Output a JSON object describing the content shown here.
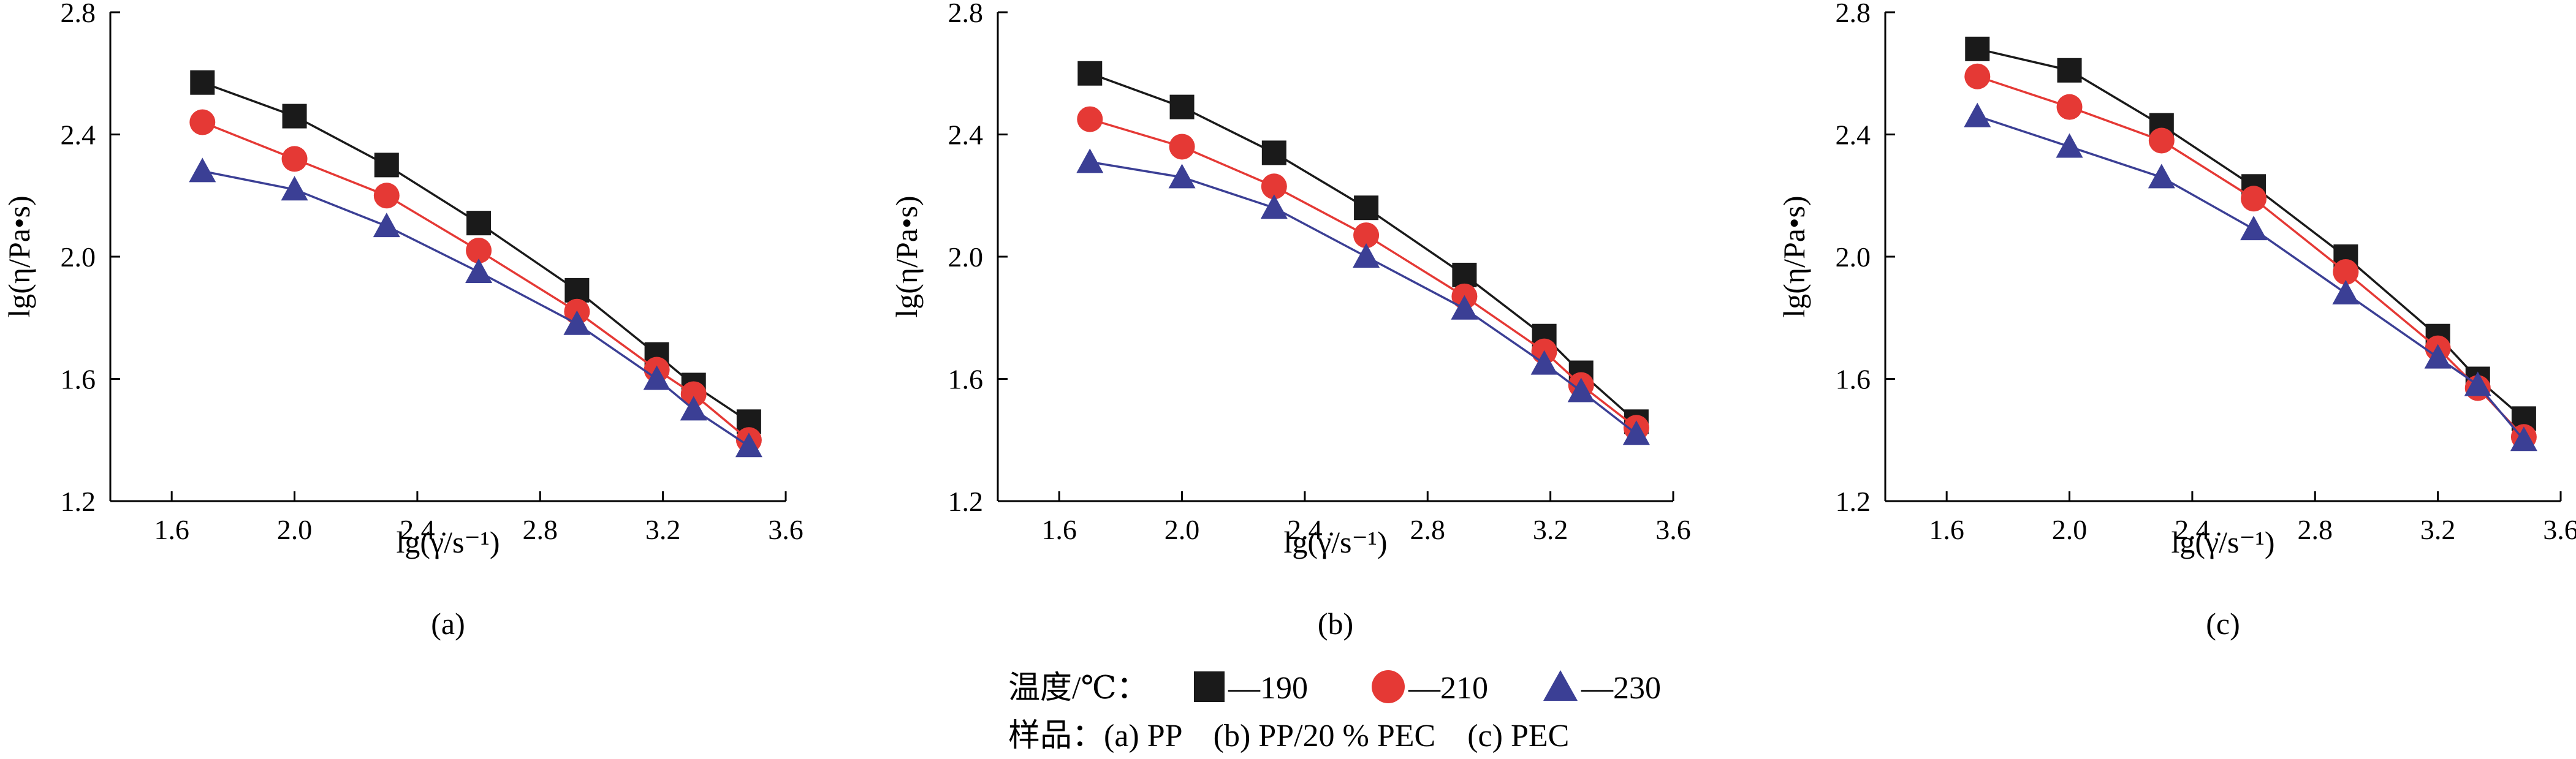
{
  "chart_data": [
    {
      "type": "line",
      "panel_label": "(a)",
      "xlabel": "lg(γ̇/s⁻¹)",
      "ylabel": "lg(η/Pa•s)",
      "xlim": [
        1.4,
        3.6
      ],
      "ylim": [
        1.2,
        2.8
      ],
      "xticks": [
        "1.6",
        "2.0",
        "2.4",
        "2.8",
        "3.2",
        "3.6"
      ],
      "yticks": [
        "1.2",
        "1.6",
        "2.0",
        "2.4",
        "2.8"
      ],
      "series": [
        {
          "name": "190",
          "marker": "square",
          "color": "#1a1a1a",
          "x": [
            1.7,
            2.0,
            2.3,
            2.6,
            2.92,
            3.18,
            3.3,
            3.48
          ],
          "y": [
            2.57,
            2.46,
            2.3,
            2.11,
            1.89,
            1.68,
            1.58,
            1.46
          ]
        },
        {
          "name": "210",
          "marker": "circle",
          "color": "#e53935",
          "x": [
            1.7,
            2.0,
            2.3,
            2.6,
            2.92,
            3.18,
            3.3,
            3.48
          ],
          "y": [
            2.44,
            2.32,
            2.2,
            2.02,
            1.82,
            1.63,
            1.55,
            1.4
          ]
        },
        {
          "name": "230",
          "marker": "triangle",
          "color": "#3b3f95",
          "x": [
            1.7,
            2.0,
            2.3,
            2.6,
            2.92,
            3.18,
            3.3,
            3.48
          ],
          "y": [
            2.28,
            2.22,
            2.1,
            1.95,
            1.78,
            1.6,
            1.5,
            1.38
          ]
        }
      ]
    },
    {
      "type": "line",
      "panel_label": "(b)",
      "xlabel": "lg(γ̇/s⁻¹)",
      "ylabel": "lg(η/Pa•s)",
      "xlim": [
        1.4,
        3.6
      ],
      "ylim": [
        1.2,
        2.8
      ],
      "xticks": [
        "1.6",
        "2.0",
        "2.4",
        "2.8",
        "3.2",
        "3.6"
      ],
      "yticks": [
        "1.2",
        "1.6",
        "2.0",
        "2.4",
        "2.8"
      ],
      "series": [
        {
          "name": "190",
          "marker": "square",
          "color": "#1a1a1a",
          "x": [
            1.7,
            2.0,
            2.3,
            2.6,
            2.92,
            3.18,
            3.3,
            3.48
          ],
          "y": [
            2.6,
            2.49,
            2.34,
            2.16,
            1.94,
            1.74,
            1.62,
            1.46
          ]
        },
        {
          "name": "210",
          "marker": "circle",
          "color": "#e53935",
          "x": [
            1.7,
            2.0,
            2.3,
            2.6,
            2.92,
            3.18,
            3.3,
            3.48
          ],
          "y": [
            2.45,
            2.36,
            2.23,
            2.07,
            1.87,
            1.69,
            1.58,
            1.44
          ]
        },
        {
          "name": "230",
          "marker": "triangle",
          "color": "#3b3f95",
          "x": [
            1.7,
            2.0,
            2.3,
            2.6,
            2.92,
            3.18,
            3.3,
            3.48
          ],
          "y": [
            2.31,
            2.26,
            2.16,
            2.0,
            1.83,
            1.65,
            1.56,
            1.42
          ]
        }
      ]
    },
    {
      "type": "line",
      "panel_label": "(c)",
      "xlabel": "lg(γ̇/s⁻¹)",
      "ylabel": "lg(η/Pa•s)",
      "xlim": [
        1.4,
        3.6
      ],
      "ylim": [
        1.2,
        2.8
      ],
      "xticks": [
        "1.6",
        "2.0",
        "2.4",
        "2.8",
        "3.2",
        "3.6"
      ],
      "yticks": [
        "1.2",
        "1.6",
        "2.0",
        "2.4",
        "2.8"
      ],
      "series": [
        {
          "name": "190",
          "marker": "square",
          "color": "#1a1a1a",
          "x": [
            1.7,
            2.0,
            2.3,
            2.6,
            2.9,
            3.2,
            3.33,
            3.48
          ],
          "y": [
            2.68,
            2.61,
            2.43,
            2.23,
            2.0,
            1.74,
            1.6,
            1.47
          ]
        },
        {
          "name": "210",
          "marker": "circle",
          "color": "#e53935",
          "x": [
            1.7,
            2.0,
            2.3,
            2.6,
            2.9,
            3.2,
            3.33,
            3.48
          ],
          "y": [
            2.59,
            2.49,
            2.38,
            2.19,
            1.95,
            1.7,
            1.57,
            1.41
          ]
        },
        {
          "name": "230",
          "marker": "triangle",
          "color": "#3b3f95",
          "x": [
            1.7,
            2.0,
            2.3,
            2.6,
            2.9,
            3.2,
            3.33,
            3.48
          ],
          "y": [
            2.46,
            2.36,
            2.26,
            2.09,
            1.88,
            1.67,
            1.58,
            1.4
          ]
        }
      ]
    }
  ],
  "legend": {
    "temperature_label": "温度/℃：",
    "entries": [
      {
        "marker": "square",
        "color": "#1a1a1a",
        "text": "—190"
      },
      {
        "marker": "circle",
        "color": "#e53935",
        "text": "—210"
      },
      {
        "marker": "triangle",
        "color": "#3b3f95",
        "text": "—230"
      }
    ],
    "sample_line": "样品：(a) PP    (b) PP/20 % PEC    (c) PEC"
  }
}
